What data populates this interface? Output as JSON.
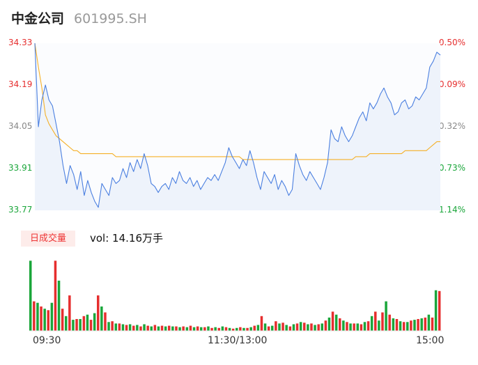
{
  "stock": {
    "name": "中金公司",
    "code": "601995.SH"
  },
  "volume_panel": {
    "tag": "日成交量",
    "text": "vol: 14.16万手"
  },
  "colors": {
    "up": "#e62e2e",
    "down": "#1aa63a",
    "flat": "#888888",
    "price_line": "#4a7fe0",
    "avg_line": "#f5b027",
    "area": "#eef3fb"
  },
  "chart_data": [
    {
      "type": "line",
      "title": "",
      "price_axis": [
        "34.33",
        "34.19",
        "34.05",
        "33.91",
        "33.77"
      ],
      "pct_axis": [
        "0.50%",
        "0.09%",
        "-0.32%",
        "-0.73%",
        "-1.14%"
      ],
      "ylim": [
        33.77,
        34.33
      ],
      "x_ticks": [
        "09:30",
        "11:30/13:00",
        "15:00"
      ],
      "series": [
        {
          "name": "",
          "values": [
            34.33,
            34.05,
            34.14,
            34.19,
            34.14,
            34.12,
            34.06,
            34.0,
            33.92,
            33.86,
            33.92,
            33.89,
            33.84,
            33.9,
            33.82,
            33.87,
            33.83,
            33.8,
            33.78,
            33.86,
            33.84,
            33.82,
            33.88,
            33.86,
            33.87,
            33.91,
            33.88,
            33.93,
            33.9,
            33.94,
            33.91,
            33.96,
            33.92,
            33.86,
            33.85,
            33.83,
            33.85,
            33.86,
            33.84,
            33.88,
            33.86,
            33.9,
            33.87,
            33.86,
            33.88,
            33.85,
            33.87,
            33.84,
            33.86,
            33.88,
            33.87,
            33.89,
            33.87,
            33.9,
            33.93,
            33.98,
            33.95,
            33.93,
            33.91,
            33.94,
            33.92,
            33.97,
            33.93,
            33.88,
            33.84,
            33.9,
            33.88,
            33.86,
            33.89,
            33.84,
            33.87,
            33.85,
            33.82,
            33.84,
            33.96,
            33.92,
            33.89,
            33.87,
            33.9,
            33.88,
            33.86,
            33.84,
            33.88,
            33.93,
            34.04,
            34.01,
            34.0,
            34.05,
            34.02,
            34.0,
            34.02,
            34.05,
            34.08,
            34.1,
            34.07,
            34.13,
            34.11,
            34.13,
            34.16,
            34.18,
            34.15,
            34.13,
            34.09,
            34.1,
            34.13,
            34.14,
            34.11,
            34.12,
            34.15,
            34.14,
            34.16,
            34.18,
            34.25,
            34.27,
            34.3,
            34.29
          ]
        },
        {
          "name": "",
          "values": [
            34.33,
            34.25,
            34.18,
            34.09,
            34.06,
            34.04,
            34.02,
            34.01,
            34.0,
            33.99,
            33.98,
            33.97,
            33.97,
            33.96,
            33.96,
            33.96,
            33.96,
            33.96,
            33.96,
            33.96,
            33.96,
            33.96,
            33.96,
            33.95,
            33.95,
            33.95,
            33.95,
            33.95,
            33.95,
            33.95,
            33.95,
            33.95,
            33.95,
            33.95,
            33.95,
            33.95,
            33.95,
            33.95,
            33.95,
            33.95,
            33.95,
            33.95,
            33.95,
            33.95,
            33.95,
            33.95,
            33.95,
            33.95,
            33.95,
            33.95,
            33.95,
            33.95,
            33.95,
            33.95,
            33.95,
            33.95,
            33.95,
            33.95,
            33.95,
            33.94,
            33.94,
            33.94,
            33.94,
            33.94,
            33.94,
            33.94,
            33.94,
            33.94,
            33.94,
            33.94,
            33.94,
            33.94,
            33.94,
            33.94,
            33.94,
            33.94,
            33.94,
            33.94,
            33.94,
            33.94,
            33.94,
            33.94,
            33.94,
            33.94,
            33.94,
            33.94,
            33.94,
            33.94,
            33.94,
            33.94,
            33.94,
            33.95,
            33.95,
            33.95,
            33.95,
            33.96,
            33.96,
            33.96,
            33.96,
            33.96,
            33.96,
            33.96,
            33.96,
            33.96,
            33.96,
            33.97,
            33.97,
            33.97,
            33.97,
            33.97,
            33.97,
            33.97,
            33.98,
            33.99,
            34.0,
            34.0
          ]
        }
      ]
    },
    {
      "type": "bar",
      "title": "",
      "values": [
        0.95,
        0.4,
        0.38,
        0.33,
        0.3,
        0.28,
        0.38,
        0.95,
        0.68,
        0.3,
        0.2,
        0.48,
        0.15,
        0.16,
        0.16,
        0.2,
        0.22,
        0.15,
        0.24,
        0.48,
        0.33,
        0.25,
        0.12,
        0.13,
        0.1,
        0.1,
        0.09,
        0.08,
        0.09,
        0.07,
        0.08,
        0.06,
        0.09,
        0.07,
        0.06,
        0.08,
        0.06,
        0.07,
        0.06,
        0.07,
        0.06,
        0.06,
        0.05,
        0.06,
        0.05,
        0.07,
        0.05,
        0.06,
        0.05,
        0.05,
        0.06,
        0.04,
        0.05,
        0.04,
        0.06,
        0.05,
        0.04,
        0.03,
        0.04,
        0.05,
        0.04,
        0.04,
        0.05,
        0.07,
        0.08,
        0.2,
        0.1,
        0.06,
        0.07,
        0.13,
        0.1,
        0.11,
        0.08,
        0.06,
        0.09,
        0.1,
        0.12,
        0.11,
        0.09,
        0.1,
        0.08,
        0.09,
        0.1,
        0.14,
        0.18,
        0.26,
        0.22,
        0.17,
        0.14,
        0.12,
        0.1,
        0.1,
        0.1,
        0.09,
        0.12,
        0.13,
        0.2,
        0.26,
        0.14,
        0.25,
        0.4,
        0.22,
        0.17,
        0.16,
        0.13,
        0.12,
        0.12,
        0.14,
        0.15,
        0.16,
        0.17,
        0.18,
        0.22,
        0.18,
        0.55,
        0.54
      ],
      "colors": [
        "g",
        "r",
        "g",
        "r",
        "g",
        "r",
        "g",
        "r",
        "g",
        "r",
        "g",
        "r",
        "g",
        "r",
        "g",
        "r",
        "g",
        "r",
        "g",
        "r",
        "g",
        "r",
        "g",
        "r",
        "g",
        "r",
        "g",
        "r",
        "g",
        "r",
        "g",
        "r",
        "g",
        "r",
        "g",
        "r",
        "g",
        "r",
        "g",
        "r",
        "g",
        "r",
        "g",
        "r",
        "g",
        "r",
        "g",
        "r",
        "g",
        "r",
        "g",
        "r",
        "g",
        "r",
        "g",
        "r",
        "g",
        "r",
        "g",
        "r",
        "g",
        "r",
        "g",
        "r",
        "g",
        "r",
        "g",
        "r",
        "g",
        "r",
        "g",
        "r",
        "g",
        "r",
        "g",
        "r",
        "g",
        "r",
        "g",
        "r",
        "g",
        "r",
        "g",
        "r",
        "g",
        "r",
        "g",
        "r",
        "g",
        "r",
        "g",
        "r",
        "g",
        "r",
        "g",
        "r",
        "g",
        "r",
        "g",
        "r",
        "g",
        "r",
        "g",
        "r",
        "g",
        "r",
        "g",
        "r",
        "g",
        "r",
        "g",
        "r",
        "g",
        "r",
        "g",
        "r"
      ]
    }
  ]
}
